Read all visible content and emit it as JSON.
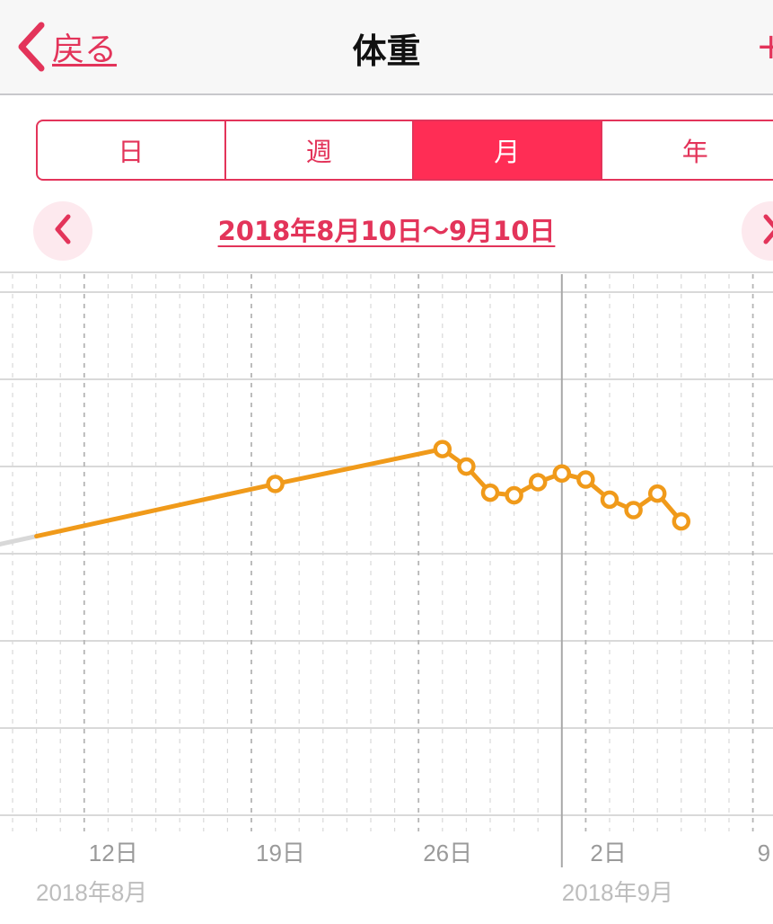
{
  "navbar": {
    "back_label": "戻る",
    "title": "体重",
    "add_label": "+"
  },
  "segments": [
    {
      "label": "日",
      "active": false
    },
    {
      "label": "週",
      "active": false
    },
    {
      "label": "月",
      "active": true
    },
    {
      "label": "年",
      "active": false
    }
  ],
  "range": {
    "label": "2018年8月10日〜9月10日",
    "prev_icon": "chevron-left-icon",
    "next_icon": "chevron-right-icon"
  },
  "colors": {
    "accent": "#e3345a",
    "segment_active": "#ff2d55",
    "series": "#f09a1a"
  },
  "chart_data": {
    "type": "line",
    "title": "",
    "xlabel": "",
    "ylabel": "",
    "x_ticks": [
      "12日",
      "19日",
      "26日",
      "2日",
      "9"
    ],
    "month_labels": [
      "2018年8月",
      "2018年9月"
    ],
    "grid": true,
    "x_range": [
      "2018-08-09",
      "2018-09-10"
    ],
    "y_range_relative": [
      0,
      6
    ],
    "series": [
      {
        "points": [
          {
            "x": "2018-08-10",
            "y": 3.2,
            "marker": false
          },
          {
            "x": "2018-08-20",
            "y": 3.8
          },
          {
            "x": "2018-08-27",
            "y": 4.2
          },
          {
            "x": "2018-08-28",
            "y": 4.0
          },
          {
            "x": "2018-08-29",
            "y": 3.7
          },
          {
            "x": "2018-08-30",
            "y": 3.67
          },
          {
            "x": "2018-08-31",
            "y": 3.82
          },
          {
            "x": "2018-09-01",
            "y": 3.92
          },
          {
            "x": "2018-09-02",
            "y": 3.85
          },
          {
            "x": "2018-09-03",
            "y": 3.62
          },
          {
            "x": "2018-09-04",
            "y": 3.5
          },
          {
            "x": "2018-09-05",
            "y": 3.69
          },
          {
            "x": "2018-09-06",
            "y": 3.37
          }
        ]
      }
    ]
  }
}
